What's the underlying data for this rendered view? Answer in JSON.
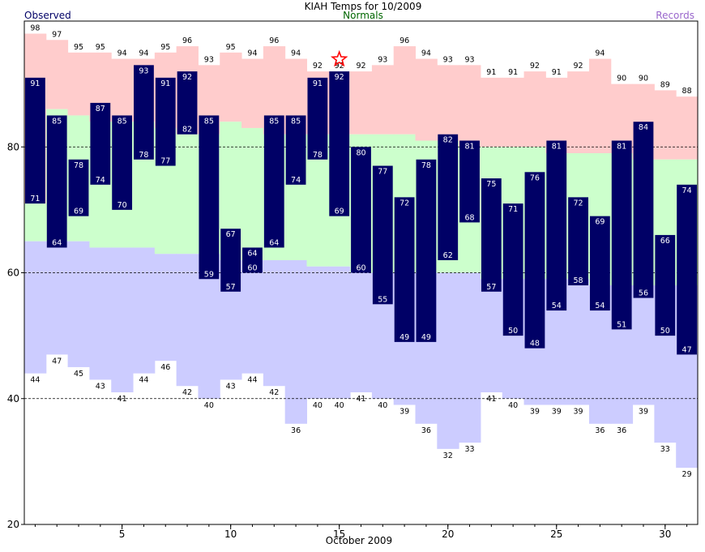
{
  "chart_data": {
    "type": "bar",
    "title": "KIAH Temps for 10/2009",
    "legend": {
      "observed": "Observed",
      "normals": "Normals",
      "records": "Records"
    },
    "xlabel": "October 2009",
    "xlim": [
      0.5,
      31.5
    ],
    "ylim": [
      20,
      100
    ],
    "yticks": [
      20,
      40,
      60,
      80
    ],
    "xticks": [
      5,
      10,
      15,
      20,
      25,
      30
    ],
    "days": [
      1,
      2,
      3,
      4,
      5,
      6,
      7,
      8,
      9,
      10,
      11,
      12,
      13,
      14,
      15,
      16,
      17,
      18,
      19,
      20,
      21,
      22,
      23,
      24,
      25,
      26,
      27,
      28,
      29,
      30,
      31
    ],
    "record_high": [
      98,
      97,
      95,
      95,
      94,
      94,
      95,
      96,
      93,
      95,
      94,
      96,
      94,
      92,
      92,
      92,
      93,
      96,
      94,
      93,
      93,
      91,
      91,
      92,
      91,
      92,
      94,
      90,
      90,
      89,
      88
    ],
    "normal_high": [
      71,
      86,
      85,
      84,
      84,
      84,
      83,
      82,
      82,
      84,
      83,
      82,
      82,
      82,
      82,
      82,
      82,
      82,
      81,
      81,
      80,
      80,
      80,
      80,
      79,
      79,
      79,
      79,
      78,
      78,
      78
    ],
    "normal_low": [
      65,
      65,
      65,
      64,
      64,
      64,
      63,
      63,
      63,
      62,
      62,
      62,
      62,
      61,
      61,
      60,
      60,
      60,
      60,
      60,
      60,
      59,
      59,
      59,
      59,
      59,
      58,
      58,
      58,
      58,
      58
    ],
    "record_low": [
      44,
      47,
      45,
      43,
      41,
      44,
      46,
      42,
      40,
      43,
      44,
      42,
      36,
      40,
      40,
      41,
      40,
      39,
      36,
      32,
      33,
      41,
      40,
      39,
      39,
      39,
      36,
      36,
      39,
      33,
      29
    ],
    "observed_high": [
      91,
      85,
      78,
      87,
      85,
      93,
      91,
      92,
      85,
      67,
      64,
      85,
      85,
      91,
      92,
      80,
      77,
      72,
      78,
      82,
      81,
      75,
      71,
      76,
      81,
      72,
      69,
      81,
      84,
      66,
      74
    ],
    "observed_low": [
      71,
      64,
      69,
      74,
      70,
      78,
      77,
      82,
      59,
      57,
      60,
      64,
      74,
      78,
      69,
      60,
      55,
      49,
      49,
      62,
      68,
      57,
      50,
      48,
      54,
      58,
      54,
      51,
      56,
      50,
      47
    ],
    "record_marker_day": 15,
    "colors": {
      "record_range_high": "#ffcccc",
      "normal_range": "#ccffcc",
      "record_range_low": "#ccccff",
      "observed_bar": "#000066",
      "observed_label": "#000066",
      "normals_label": "#006600",
      "records_label": "#9966cc",
      "star": "#ff0000"
    }
  }
}
